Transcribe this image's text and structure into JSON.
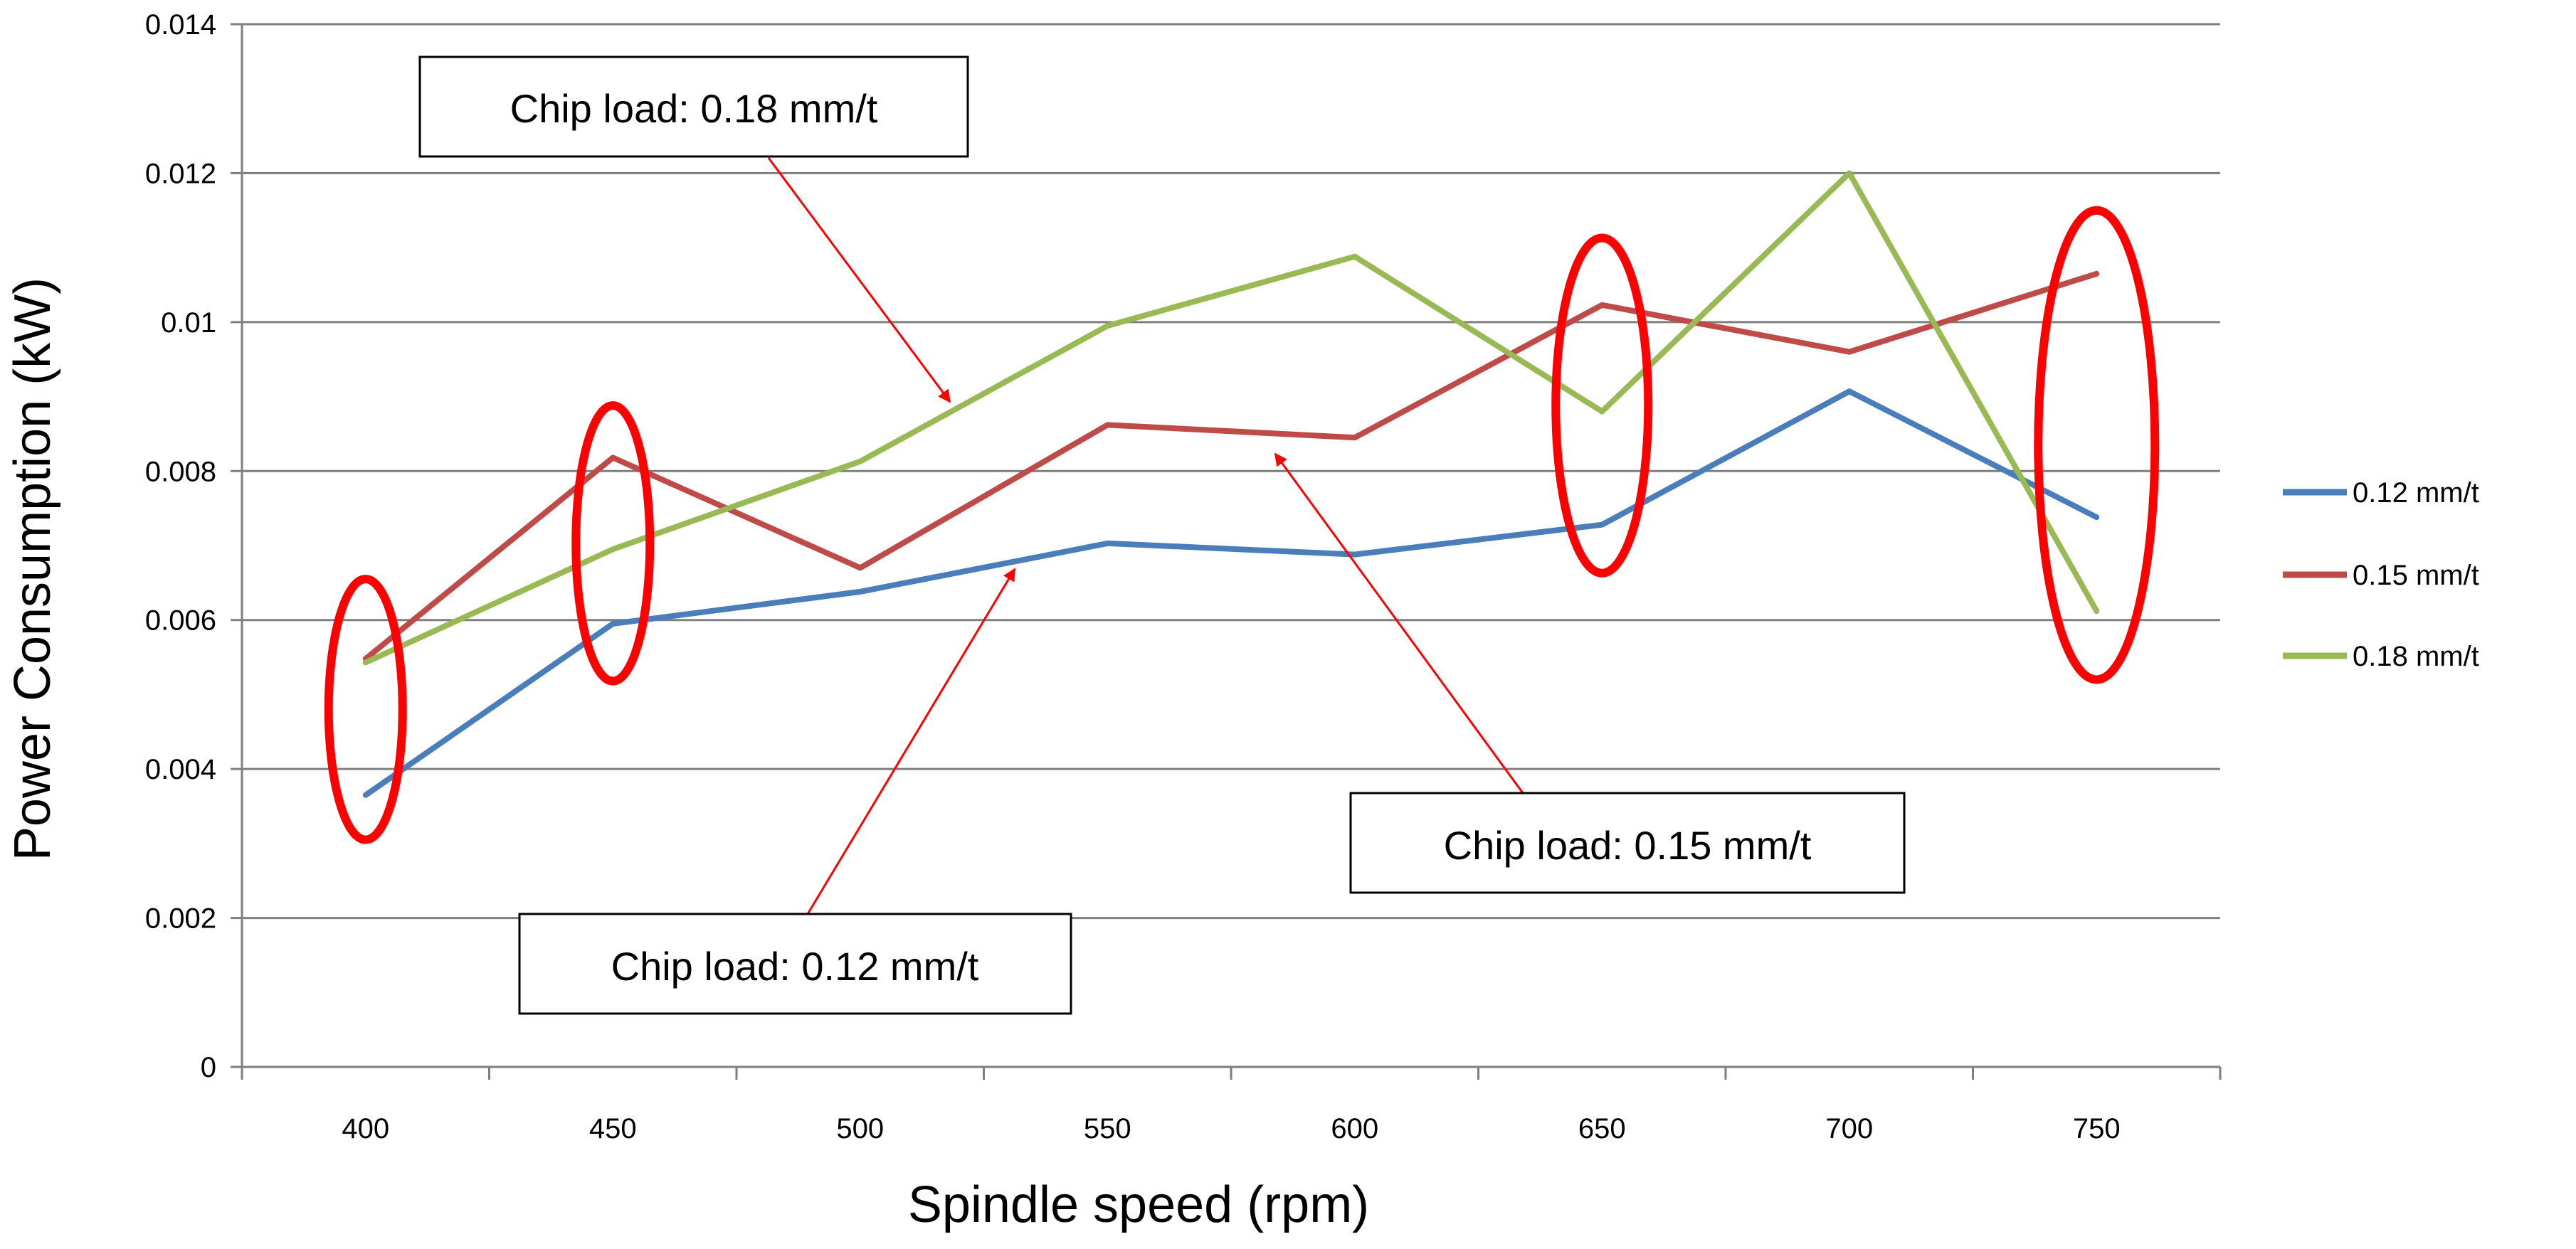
{
  "chart_data": {
    "type": "line",
    "title": "",
    "xlabel": "Spindle speed (rpm)",
    "ylabel": "Power Consumption (kW)",
    "categories": [
      "400",
      "450",
      "500",
      "550",
      "600",
      "650",
      "700",
      "750"
    ],
    "ylim": [
      0,
      0.014
    ],
    "yticks": [
      0,
      0.002,
      0.004,
      0.006,
      0.008,
      0.01,
      0.012,
      0.014
    ],
    "ytick_labels": [
      "0",
      "0.002",
      "0.004",
      "0.006",
      "0.008",
      "0.01",
      "0.012",
      "0.014"
    ],
    "grid": true,
    "legend_position": "right",
    "series": [
      {
        "name": "0.12 mm/t",
        "color": "#4a7ebb",
        "values": [
          0.00365,
          0.00595,
          0.00638,
          0.00703,
          0.00688,
          0.00728,
          0.00907,
          0.00738
        ]
      },
      {
        "name": "0.15 mm/t",
        "color": "#be4b48",
        "values": [
          0.00548,
          0.00818,
          0.0067,
          0.00862,
          0.00845,
          0.01023,
          0.0096,
          0.01065
        ]
      },
      {
        "name": "0.18 mm/t",
        "color": "#98b954",
        "values": [
          0.00543,
          0.00695,
          0.00813,
          0.00995,
          0.01088,
          0.0088,
          0.012,
          0.00612
        ]
      }
    ],
    "annotations": [
      {
        "text": "Chip load: 0.18 mm/t",
        "series": "0.18 mm/t"
      },
      {
        "text": "Chip load: 0.15 mm/t",
        "series": "0.15 mm/t"
      },
      {
        "text": "Chip load: 0.12 mm/t",
        "series": "0.12 mm/t"
      }
    ],
    "highlights": [
      {
        "category": "400",
        "shape": "ellipse",
        "color": "#ff0000"
      },
      {
        "category": "450",
        "shape": "ellipse",
        "color": "#ff0000"
      },
      {
        "category": "650",
        "shape": "ellipse",
        "color": "#ff0000"
      },
      {
        "category": "750",
        "shape": "ellipse",
        "color": "#ff0000"
      }
    ],
    "annotation_color": "#ff0000"
  }
}
